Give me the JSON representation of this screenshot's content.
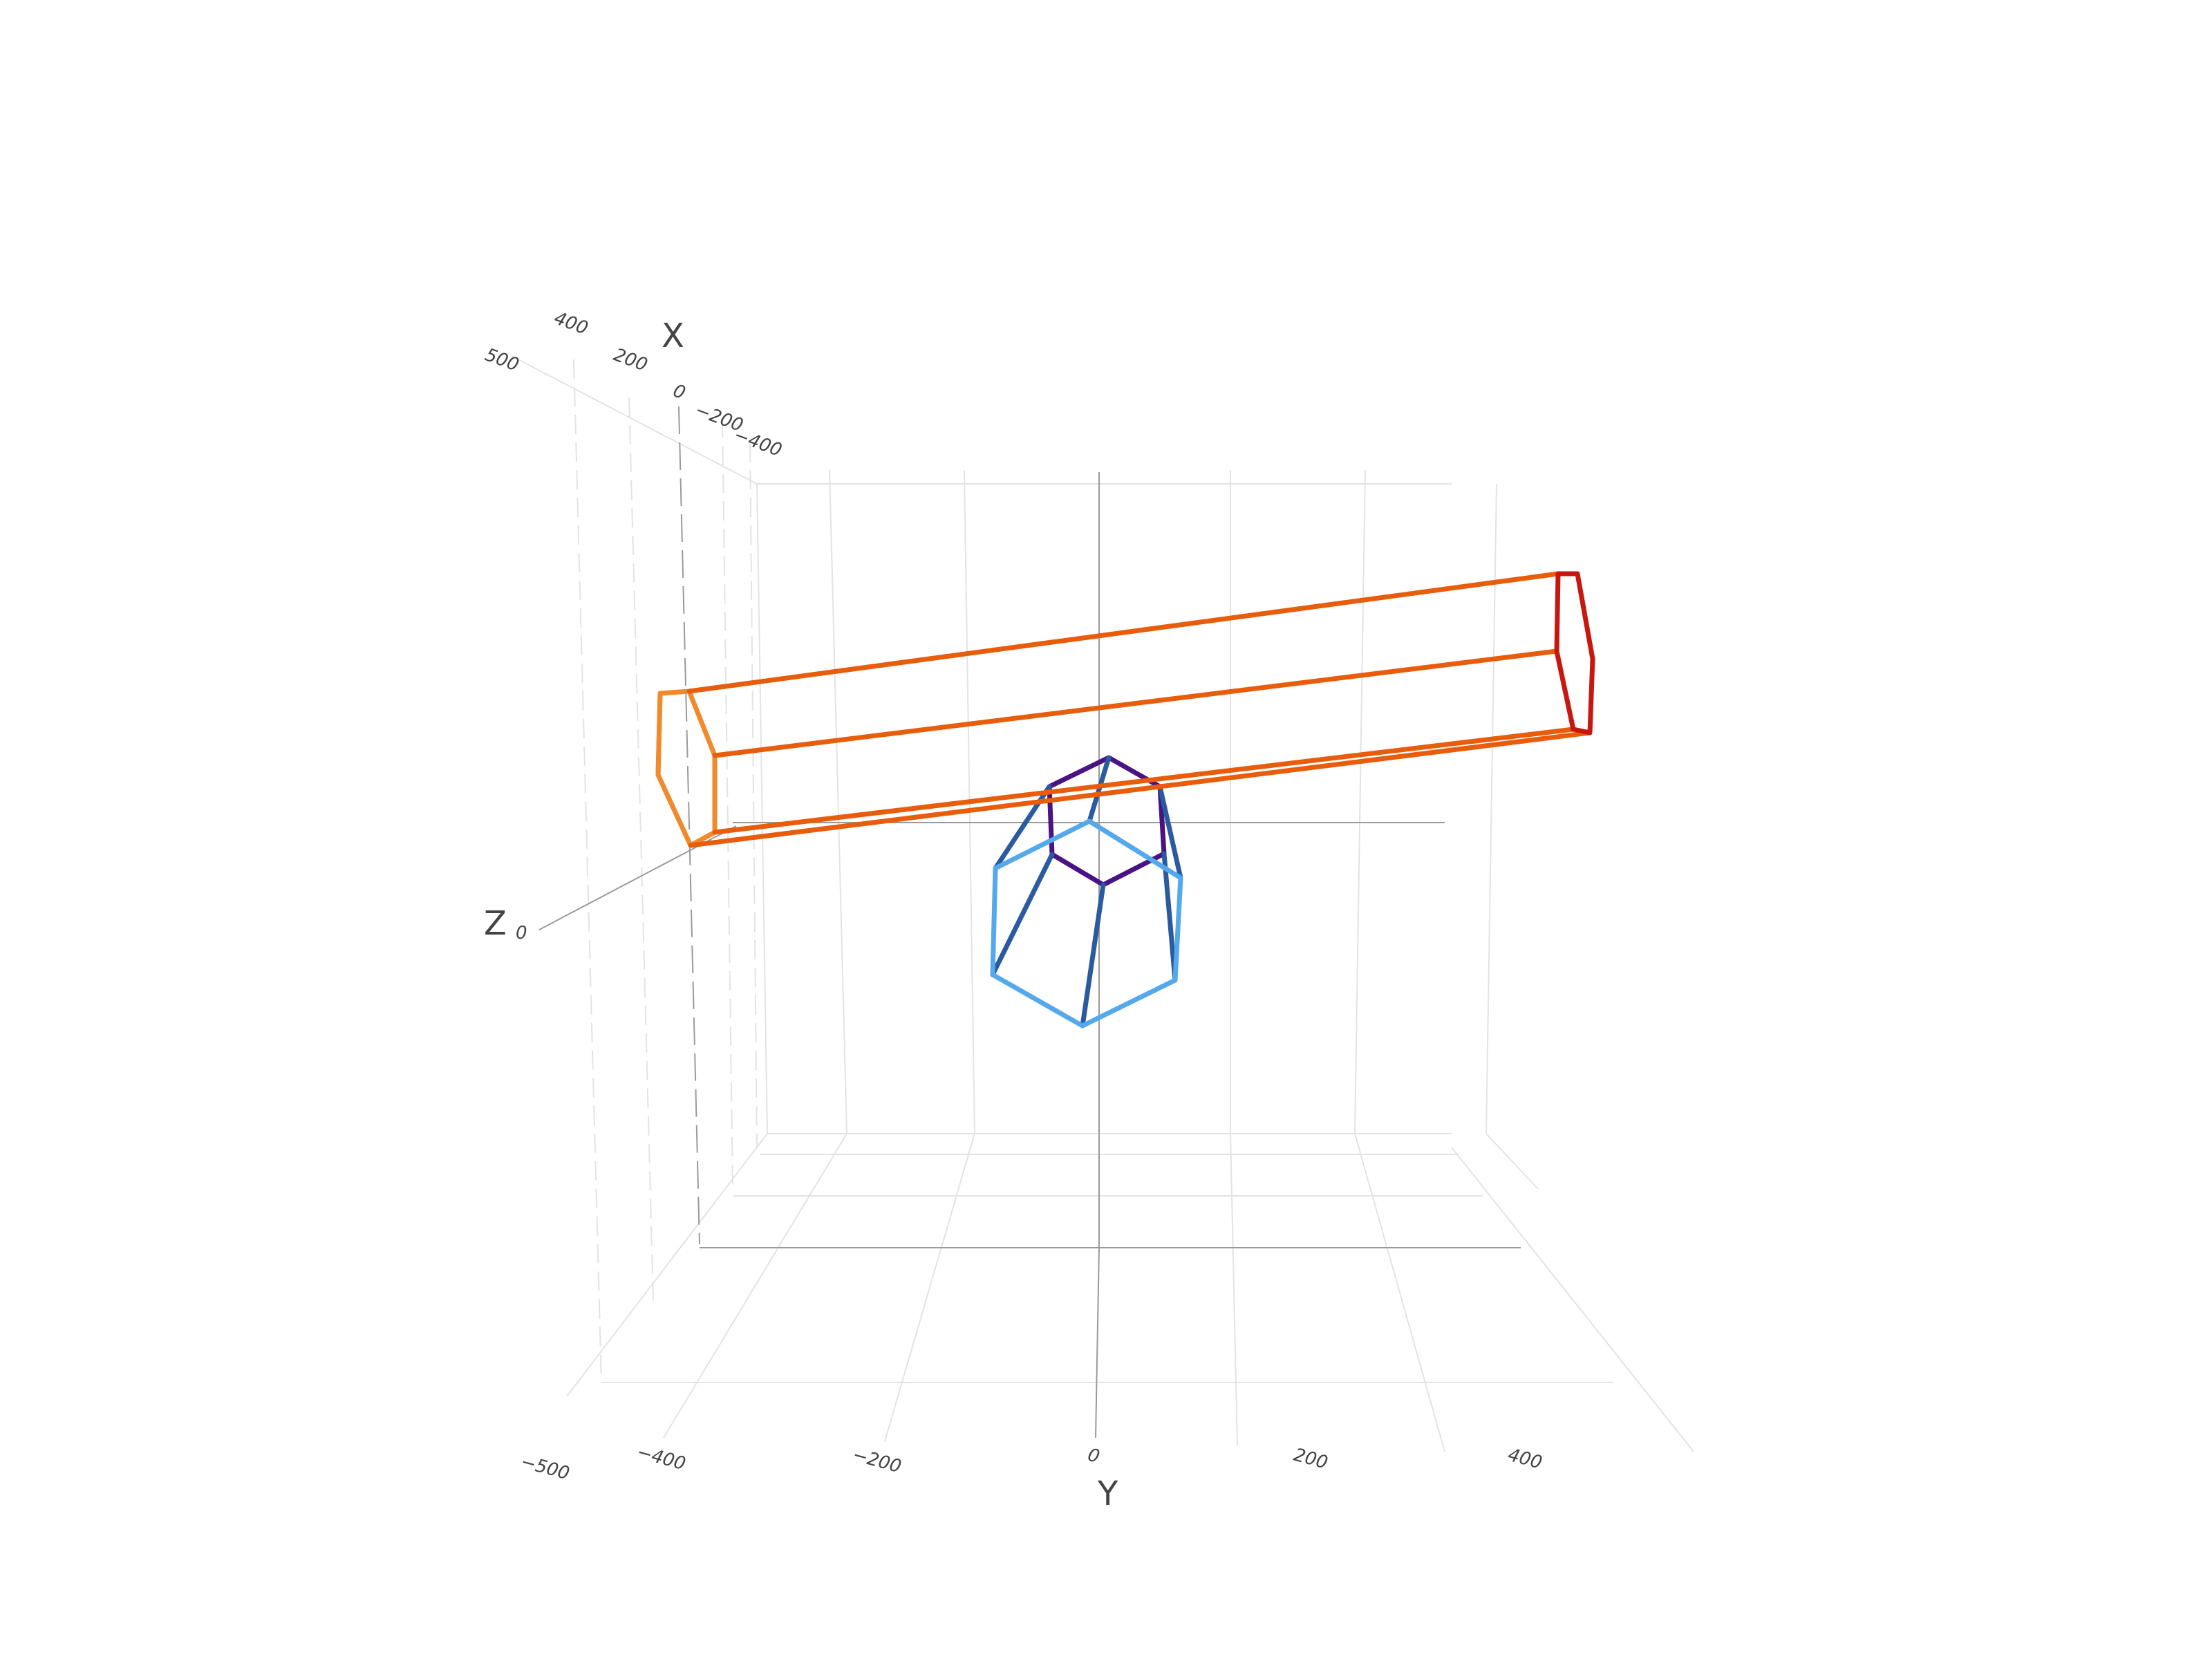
{
  "axes": {
    "x": {
      "title": "X",
      "ticks": [
        {
          "value": 500,
          "label": "500"
        },
        {
          "value": 400,
          "label": "400"
        },
        {
          "value": 200,
          "label": "200"
        },
        {
          "value": 0,
          "label": "0"
        },
        {
          "value": -200,
          "label": "−200"
        },
        {
          "value": -400,
          "label": "−400"
        }
      ]
    },
    "y": {
      "title": "Y",
      "ticks": [
        {
          "value": -500,
          "label": "−500"
        },
        {
          "value": -400,
          "label": "−400"
        },
        {
          "value": -200,
          "label": "−200"
        },
        {
          "value": 0,
          "label": "0"
        },
        {
          "value": 200,
          "label": "200"
        },
        {
          "value": 400,
          "label": "400"
        }
      ]
    },
    "z": {
      "title": "Z",
      "ticks": [
        {
          "value": 0,
          "label": "0"
        }
      ]
    }
  },
  "shapes": {
    "beam": {
      "colors": [
        "#e85d0c",
        "#f08a2c",
        "#c8170e"
      ]
    },
    "frustum": {
      "colors": [
        "#54a8ec",
        "#2a5aa0",
        "#4b1284"
      ]
    }
  }
}
